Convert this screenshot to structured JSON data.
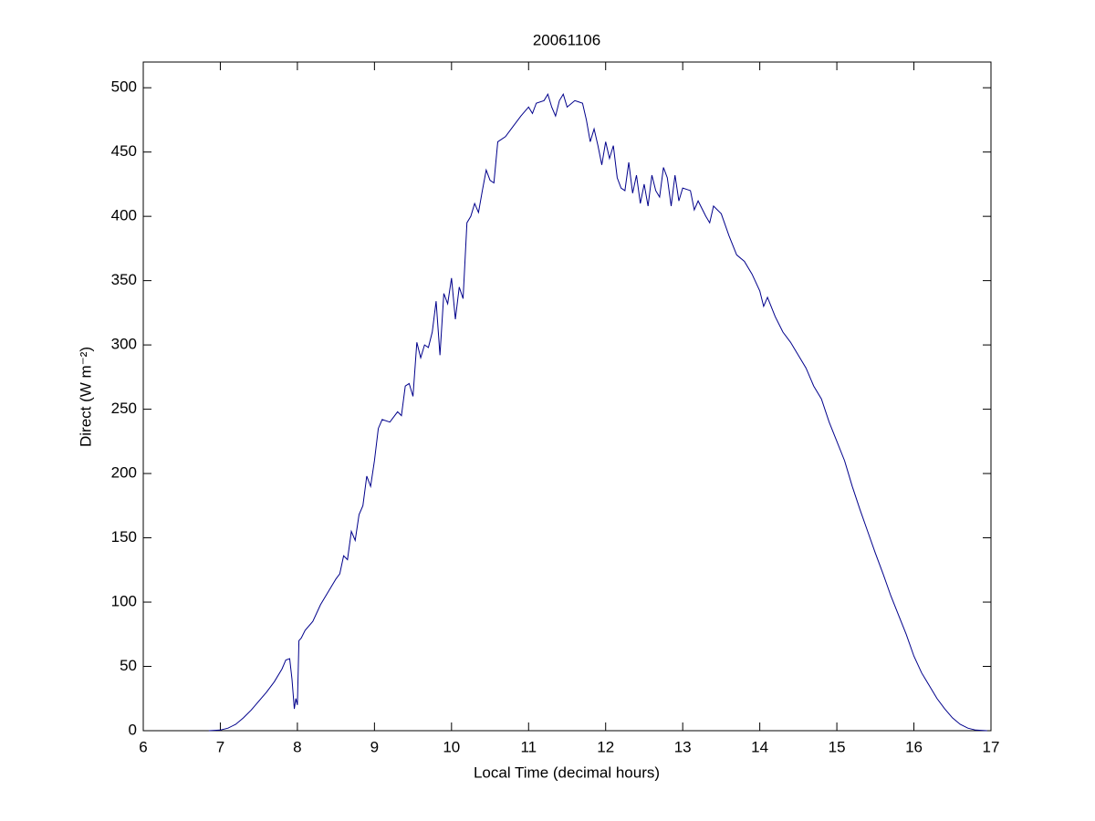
{
  "chart_data": {
    "type": "line",
    "title": "20061106",
    "xlabel": "Local Time (decimal hours)",
    "ylabel": "Direct (W m⁻²)",
    "xlim": [
      6,
      17
    ],
    "xticks": [
      6,
      7,
      8,
      9,
      10,
      11,
      12,
      13,
      14,
      15,
      16,
      17
    ],
    "ylim": [
      0,
      520
    ],
    "yticks": [
      0,
      50,
      100,
      150,
      200,
      250,
      300,
      350,
      400,
      450,
      500
    ],
    "grid": false,
    "series": [
      {
        "name": "Direct",
        "color": "#00008b",
        "x": [
          6.85,
          7.0,
          7.1,
          7.2,
          7.3,
          7.4,
          7.5,
          7.6,
          7.7,
          7.8,
          7.85,
          7.9,
          7.93,
          7.96,
          7.98,
          8.0,
          8.02,
          8.05,
          8.1,
          8.2,
          8.3,
          8.4,
          8.5,
          8.55,
          8.6,
          8.65,
          8.7,
          8.75,
          8.8,
          8.85,
          8.9,
          8.95,
          9.0,
          9.05,
          9.1,
          9.2,
          9.3,
          9.35,
          9.4,
          9.45,
          9.5,
          9.55,
          9.6,
          9.65,
          9.7,
          9.75,
          9.8,
          9.85,
          9.9,
          9.95,
          10.0,
          10.05,
          10.1,
          10.15,
          10.2,
          10.25,
          10.3,
          10.35,
          10.4,
          10.45,
          10.5,
          10.55,
          10.6,
          10.7,
          10.8,
          10.9,
          11.0,
          11.05,
          11.1,
          11.2,
          11.25,
          11.3,
          11.35,
          11.4,
          11.45,
          11.5,
          11.6,
          11.7,
          11.75,
          11.8,
          11.85,
          11.9,
          11.95,
          12.0,
          12.05,
          12.1,
          12.15,
          12.2,
          12.25,
          12.3,
          12.35,
          12.4,
          12.45,
          12.5,
          12.55,
          12.6,
          12.65,
          12.7,
          12.75,
          12.8,
          12.85,
          12.9,
          12.95,
          13.0,
          13.1,
          13.15,
          13.2,
          13.3,
          13.35,
          13.4,
          13.5,
          13.6,
          13.7,
          13.8,
          13.9,
          14.0,
          14.05,
          14.1,
          14.2,
          14.3,
          14.4,
          14.5,
          14.6,
          14.7,
          14.8,
          14.9,
          15.0,
          15.1,
          15.2,
          15.3,
          15.4,
          15.5,
          15.6,
          15.7,
          15.8,
          15.9,
          16.0,
          16.1,
          16.2,
          16.3,
          16.4,
          16.5,
          16.6,
          16.7,
          16.8,
          16.95
        ],
        "values": [
          0,
          0.5,
          2,
          5,
          10,
          16,
          23,
          30,
          38,
          48,
          55,
          56,
          40,
          17,
          25,
          20,
          70,
          72,
          78,
          85,
          98,
          108,
          118,
          122,
          136,
          133,
          155,
          148,
          168,
          175,
          198,
          190,
          210,
          235,
          242,
          240,
          248,
          245,
          268,
          270,
          260,
          302,
          290,
          300,
          298,
          310,
          334,
          292,
          340,
          332,
          352,
          320,
          345,
          336,
          395,
          400,
          410,
          403,
          420,
          436,
          428,
          426,
          458,
          462,
          470,
          478,
          485,
          480,
          488,
          490,
          495,
          485,
          478,
          490,
          495,
          485,
          490,
          488,
          475,
          458,
          468,
          455,
          440,
          458,
          445,
          455,
          430,
          422,
          420,
          442,
          418,
          432,
          410,
          425,
          408,
          432,
          420,
          415,
          438,
          430,
          408,
          432,
          412,
          422,
          420,
          405,
          412,
          400,
          395,
          408,
          402,
          385,
          370,
          365,
          355,
          342,
          330,
          337,
          322,
          310,
          302,
          292,
          282,
          268,
          258,
          240,
          225,
          210,
          190,
          172,
          155,
          138,
          122,
          105,
          90,
          75,
          58,
          45,
          35,
          25,
          17,
          10,
          5,
          2,
          0.5,
          0
        ]
      }
    ]
  }
}
